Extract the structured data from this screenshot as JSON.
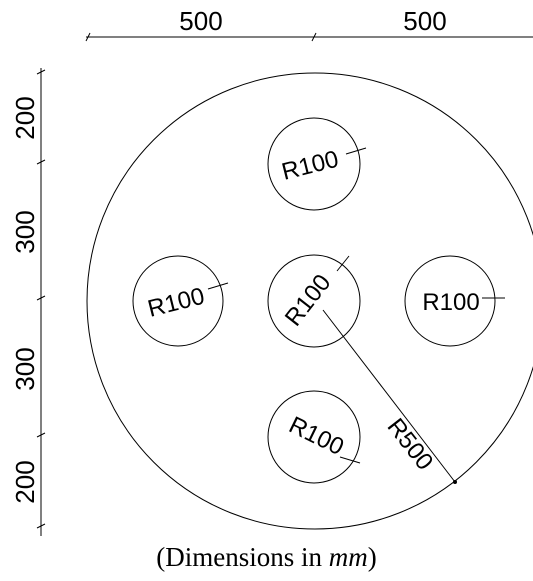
{
  "horizontal_dimensions": [
    "500",
    "500"
  ],
  "vertical_dimensions": [
    "200",
    "300",
    "300",
    "200"
  ],
  "hole_labels": {
    "top": "R100",
    "left": "R100",
    "center": "R100",
    "right": "R100",
    "bottom": "R100"
  },
  "outer_radius_label": "R500",
  "caption": {
    "prefix": "(Dimensions in ",
    "unit": "mm",
    "suffix": ")"
  },
  "line_color": "#000000"
}
